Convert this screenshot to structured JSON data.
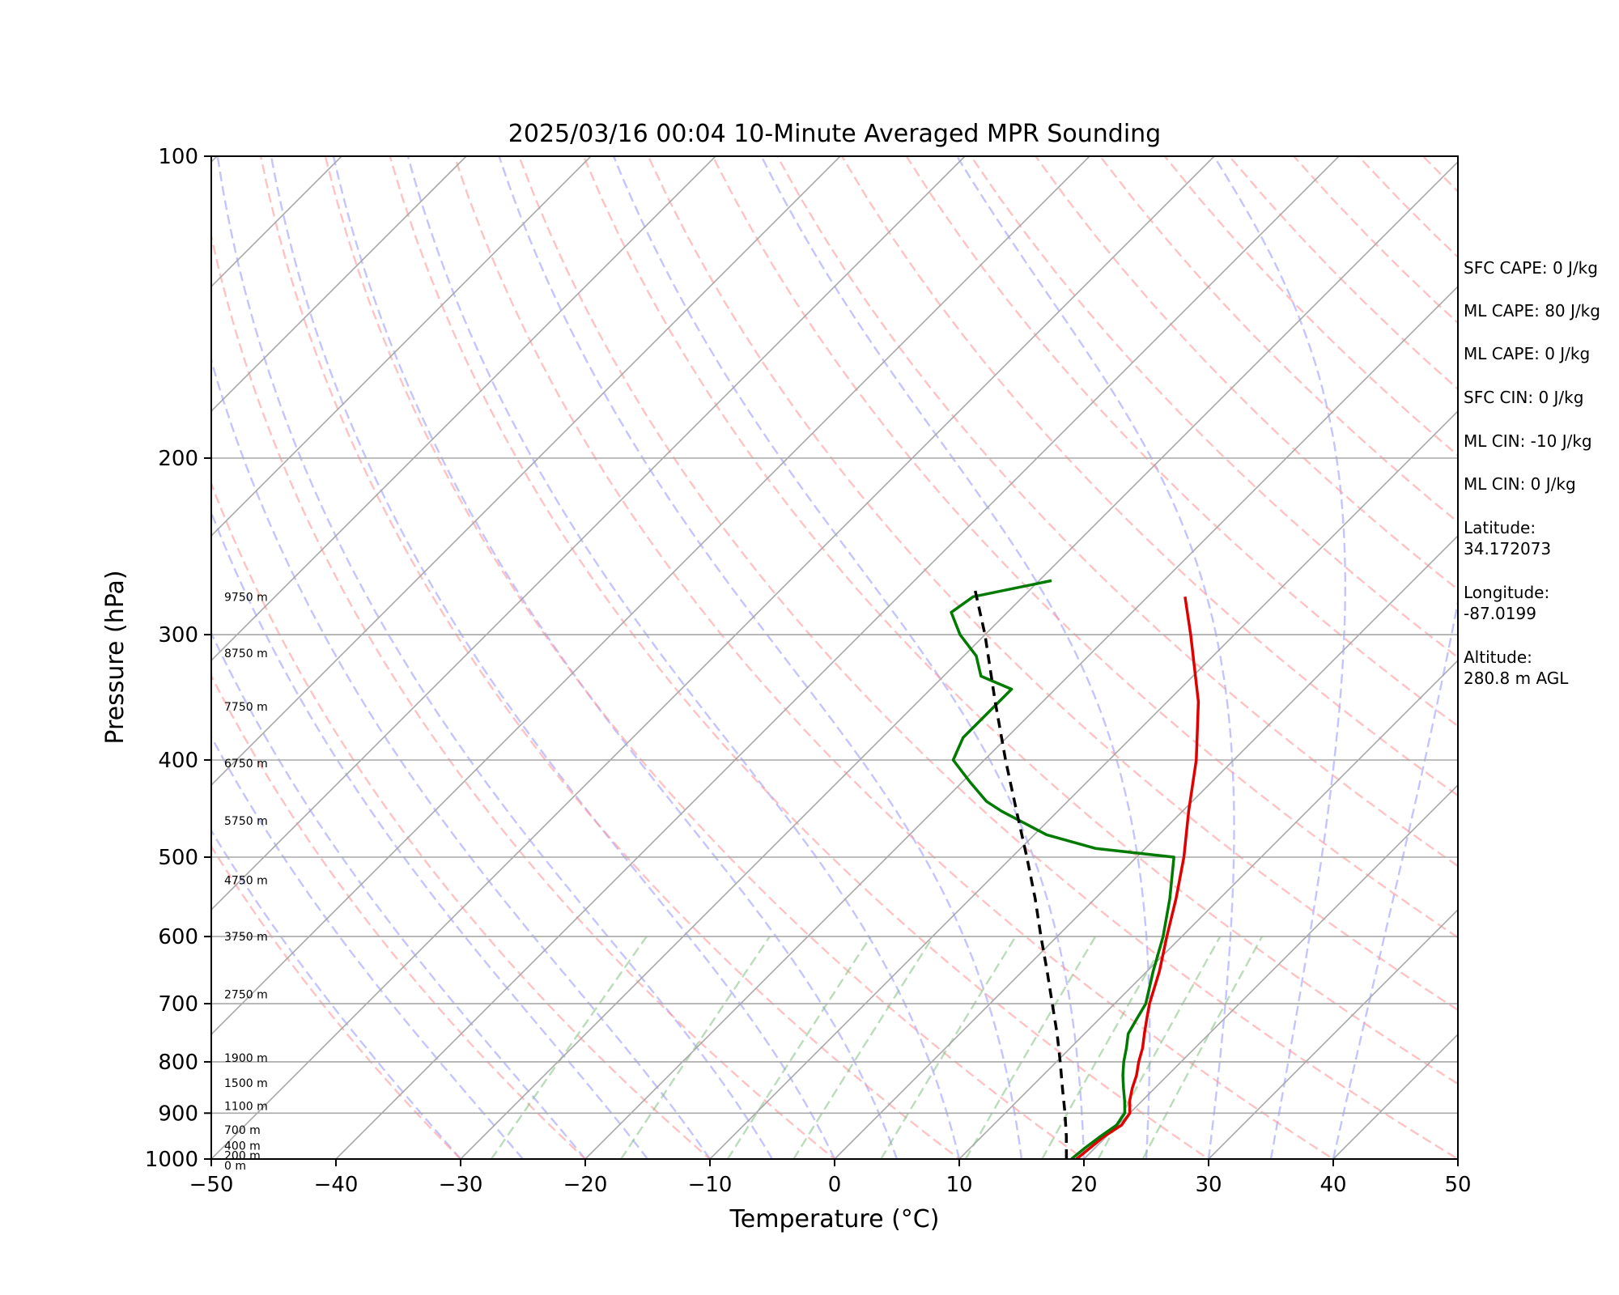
{
  "chart_data": {
    "type": "line",
    "title": "2025/03/16 00:04 10-Minute Averaged MPR Sounding",
    "xlabel": "Temperature (°C)",
    "ylabel": "Pressure (hPa)",
    "xlim": [
      -50,
      50
    ],
    "ylim": [
      1000,
      100
    ],
    "yscale": "log",
    "x_ticks": [
      "−50",
      "−40",
      "−30",
      "−20",
      "−10",
      "0",
      "10",
      "20",
      "30",
      "40",
      "50"
    ],
    "y_ticks": [
      {
        "value": 100,
        "label": "100"
      },
      {
        "value": 200,
        "label": "200"
      },
      {
        "value": 300,
        "label": "300"
      },
      {
        "value": 400,
        "label": "400"
      },
      {
        "value": 500,
        "label": "500"
      },
      {
        "value": 600,
        "label": "600"
      },
      {
        "value": 700,
        "label": "700"
      },
      {
        "value": 800,
        "label": "800"
      },
      {
        "value": 900,
        "label": "900"
      },
      {
        "value": 1000,
        "label": "1000"
      }
    ],
    "skew": 45,
    "grid": true,
    "height_labels": [
      {
        "label": "9750 m",
        "p": 275
      },
      {
        "label": "8750 m",
        "p": 313
      },
      {
        "label": "7750 m",
        "p": 354
      },
      {
        "label": "6750 m",
        "p": 403
      },
      {
        "label": "5750 m",
        "p": 460
      },
      {
        "label": "4750 m",
        "p": 527
      },
      {
        "label": "3750 m",
        "p": 600
      },
      {
        "label": "2750 m",
        "p": 685
      },
      {
        "label": "1900 m",
        "p": 793
      },
      {
        "label": "1500 m",
        "p": 840
      },
      {
        "label": "1100 m",
        "p": 885
      },
      {
        "label": "700 m",
        "p": 935
      },
      {
        "label": "400 m",
        "p": 970
      },
      {
        "label": "200 m",
        "p": 992
      },
      {
        "label": "0 m",
        "p": 1015
      }
    ],
    "series": [
      {
        "color": "#e00000",
        "profile": [
          [
            1000,
            19.4
          ],
          [
            975,
            19.6
          ],
          [
            950,
            19.8
          ],
          [
            925,
            20.3
          ],
          [
            900,
            20.0
          ],
          [
            875,
            19.0
          ],
          [
            850,
            18.2
          ],
          [
            825,
            17.5
          ],
          [
            800,
            16.6
          ],
          [
            775,
            15.8
          ],
          [
            750,
            14.8
          ],
          [
            725,
            13.8
          ],
          [
            700,
            12.8
          ],
          [
            650,
            11.0
          ],
          [
            600,
            8.8
          ],
          [
            550,
            6.5
          ],
          [
            500,
            3.8
          ],
          [
            450,
            0.5
          ],
          [
            400,
            -3.0
          ],
          [
            350,
            -7.5
          ],
          [
            300,
            -13.5
          ],
          [
            275,
            -17.0
          ]
        ]
      },
      {
        "color": "#007a00",
        "profile": [
          [
            1000,
            19.0
          ],
          [
            975,
            19.2
          ],
          [
            950,
            19.5
          ],
          [
            925,
            19.9
          ],
          [
            900,
            19.6
          ],
          [
            875,
            18.6
          ],
          [
            850,
            17.5
          ],
          [
            825,
            16.4
          ],
          [
            800,
            15.4
          ],
          [
            775,
            14.5
          ],
          [
            750,
            13.5
          ],
          [
            725,
            13.0
          ],
          [
            700,
            12.5
          ],
          [
            650,
            10.5
          ],
          [
            600,
            8.5
          ],
          [
            550,
            6.0
          ],
          [
            500,
            3.0
          ],
          [
            490,
            -4.0
          ],
          [
            475,
            -9.0
          ],
          [
            450,
            -14.5
          ],
          [
            440,
            -16.5
          ],
          [
            420,
            -19.5
          ],
          [
            400,
            -22.5
          ],
          [
            380,
            -23.5
          ],
          [
            340,
            -23.5
          ],
          [
            330,
            -27.0
          ],
          [
            315,
            -29.0
          ],
          [
            300,
            -32.0
          ],
          [
            285,
            -34.5
          ],
          [
            275,
            -34.0
          ],
          [
            265,
            -29.0
          ]
        ]
      },
      {
        "color": "#000000",
        "dashed": true,
        "profile": [
          [
            1000,
            18.6
          ],
          [
            950,
            16.8
          ],
          [
            900,
            14.8
          ],
          [
            850,
            12.6
          ],
          [
            800,
            10.3
          ],
          [
            750,
            7.8
          ],
          [
            700,
            5.0
          ],
          [
            650,
            2.0
          ],
          [
            600,
            -1.3
          ],
          [
            550,
            -4.8
          ],
          [
            500,
            -8.8
          ],
          [
            450,
            -13.3
          ],
          [
            400,
            -18.3
          ],
          [
            350,
            -23.8
          ],
          [
            300,
            -30.0
          ],
          [
            270,
            -34.5
          ]
        ]
      }
    ]
  },
  "info": {
    "sfc_cape": "SFC CAPE: 0 J/kg",
    "ml_cape_1": "ML CAPE: 80 J/kg",
    "ml_cape_2": "ML CAPE: 0 J/kg",
    "sfc_cin": "SFC CIN: 0 J/kg",
    "ml_cin_1": "ML CIN: -10 J/kg",
    "ml_cin_2": "ML CIN: 0 J/kg",
    "latitude": "Latitude:\n34.172073",
    "longitude": "Longitude:\n-87.0199",
    "altitude": "Altitude:\n280.8 m AGL"
  }
}
